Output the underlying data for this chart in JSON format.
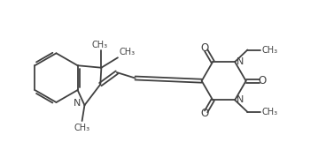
{
  "bg_color": "#ffffff",
  "line_color": "#404040",
  "line_width": 1.3,
  "font_size": 7.0,
  "figsize": [
    3.59,
    1.87
  ],
  "dpi": 100,
  "xlim": [
    0,
    10
  ],
  "ylim": [
    0,
    5.2
  ]
}
